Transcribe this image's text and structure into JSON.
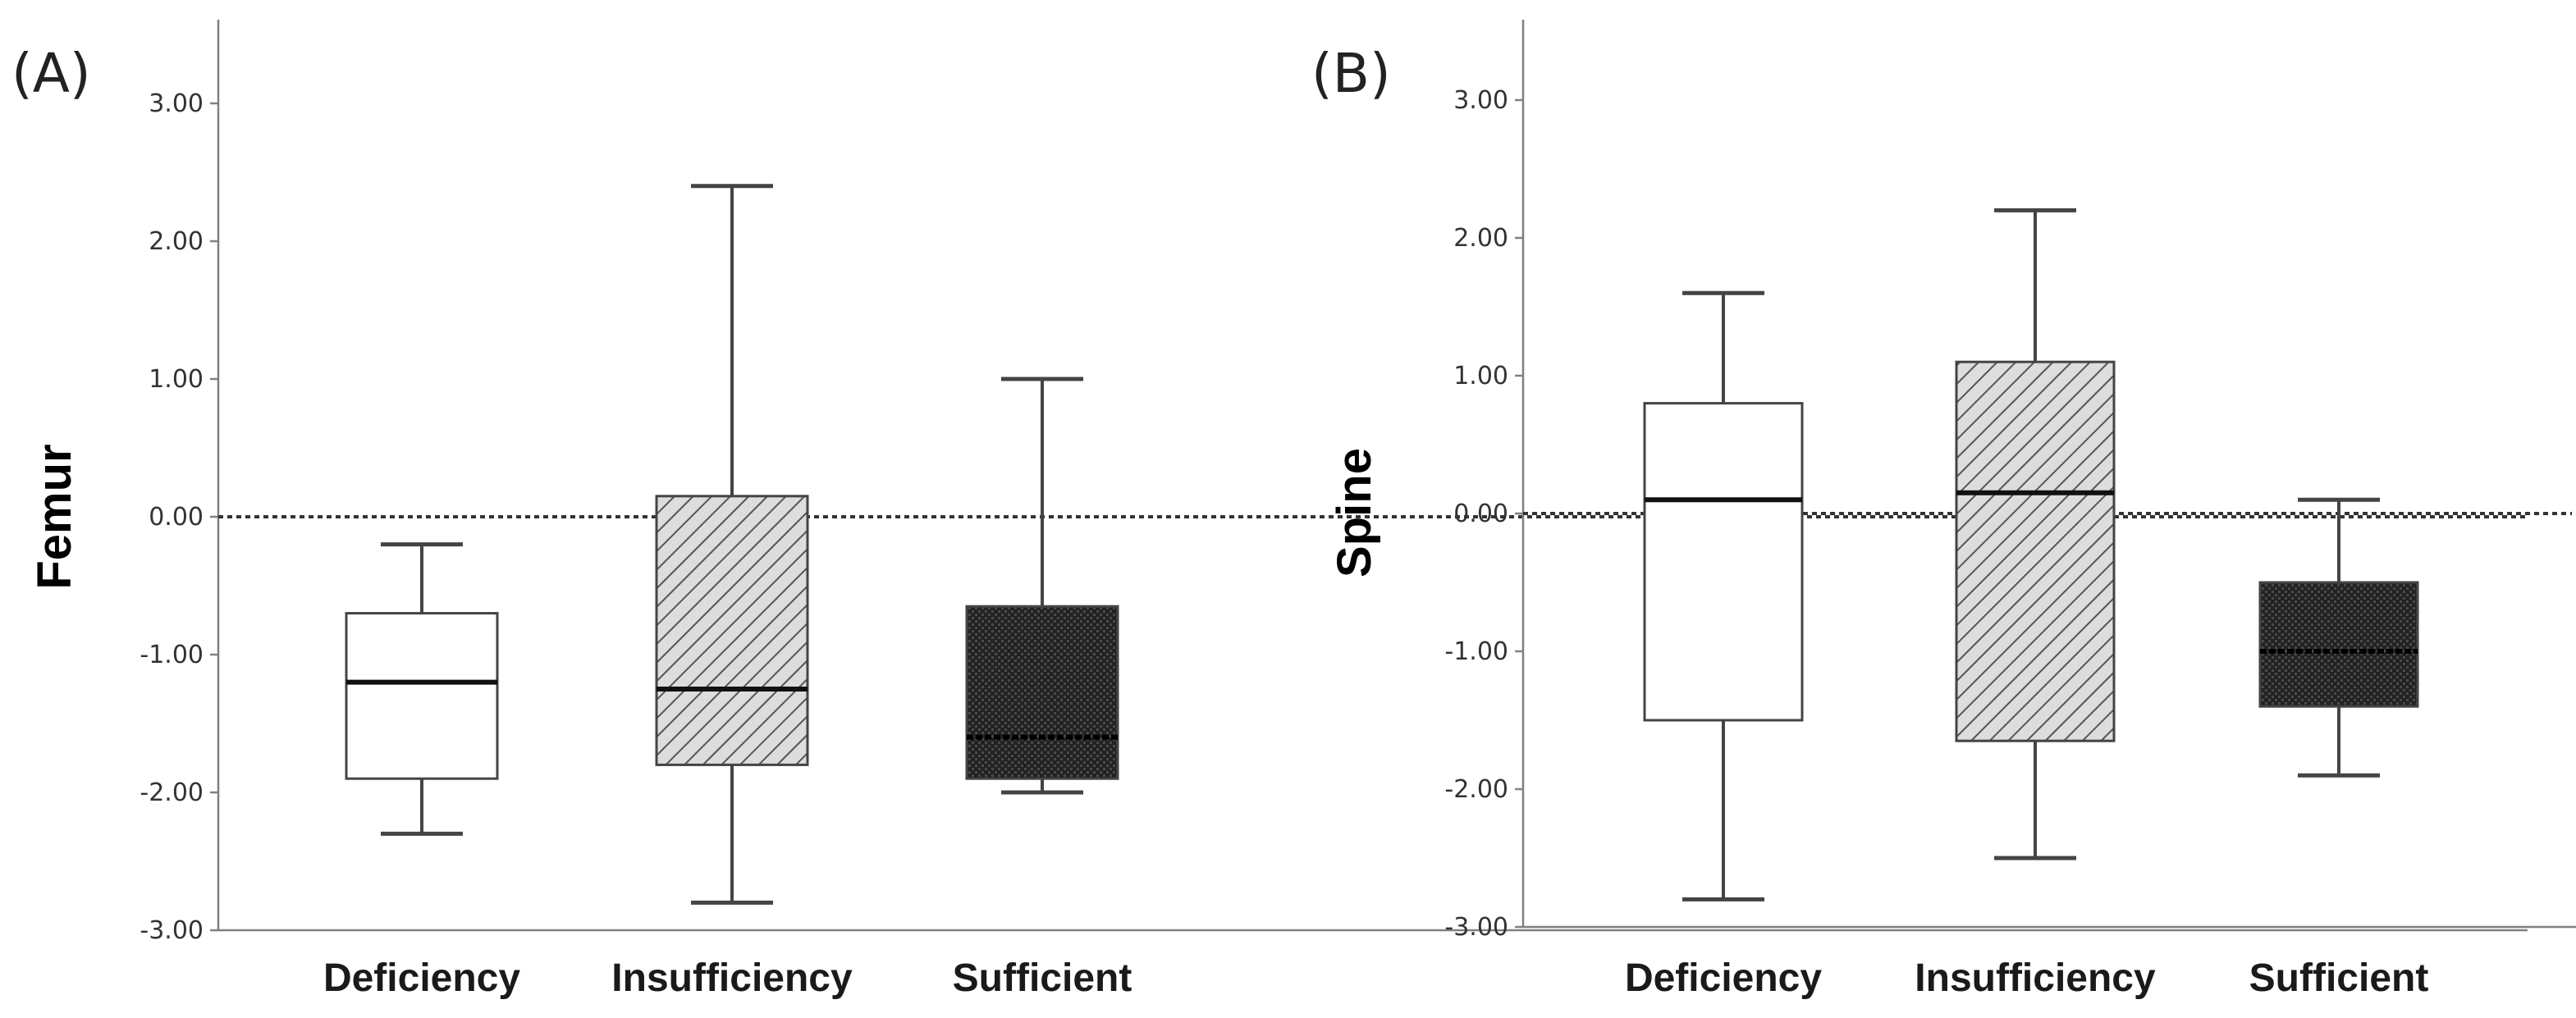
{
  "figure": {
    "panel_labels": [
      "(A)",
      "(B)"
    ]
  },
  "colors": {
    "axis": "#808080",
    "box_stroke": "#444444",
    "fill_white": "#ffffff",
    "hatch_fill": "#dddddd",
    "hatch_line": "#555555",
    "dark_fill": "#222222",
    "dark_fill_pattern": "#555555",
    "reference_line": "#333333"
  },
  "chart_data": [
    {
      "type": "boxplot",
      "panel": "(A)",
      "title": "",
      "xlabel": "",
      "ylabel": "Femur",
      "ylim": [
        -3.0,
        3.6
      ],
      "yticks": [
        3.0,
        2.0,
        1.0,
        0.0,
        -1.0,
        -2.0,
        -3.0
      ],
      "ytick_labels": [
        "3.00",
        "2.00",
        "1.00",
        "0.00",
        "-1.00",
        "-2.00",
        "-3.00"
      ],
      "reference_line": 0.0,
      "categories": [
        "Deficiency",
        "Insufficiency",
        "Sufficient"
      ],
      "boxes": [
        {
          "category": "Deficiency",
          "fill": "white",
          "whisker_low": -2.3,
          "q1": -1.9,
          "median": -1.2,
          "q3": -0.7,
          "whisker_high": -0.2
        },
        {
          "category": "Insufficiency",
          "fill": "hatched",
          "whisker_low": -2.8,
          "q1": -1.8,
          "median": -1.25,
          "q3": 0.15,
          "whisker_high": 2.4
        },
        {
          "category": "Sufficient",
          "fill": "dark",
          "whisker_low": -2.0,
          "q1": -1.9,
          "median": -1.6,
          "q3": -0.65,
          "whisker_high": 1.0
        }
      ]
    },
    {
      "type": "boxplot",
      "panel": "(B)",
      "title": "",
      "xlabel": "",
      "ylabel": "Spine",
      "ylim": [
        -3.0,
        3.6
      ],
      "yticks": [
        3.0,
        2.0,
        1.0,
        0.0,
        -1.0,
        -2.0,
        -3.0
      ],
      "ytick_labels": [
        "3.00",
        "2.00",
        "1.00",
        "0.00",
        "-1.00",
        "-2.00",
        "-3.00"
      ],
      "reference_line": 0.0,
      "categories": [
        "Deficiency",
        "Insufficiency",
        "Sufficient"
      ],
      "boxes": [
        {
          "category": "Deficiency",
          "fill": "white",
          "whisker_low": -2.8,
          "q1": -1.5,
          "median": 0.1,
          "q3": 0.8,
          "whisker_high": 1.6
        },
        {
          "category": "Insufficiency",
          "fill": "hatched",
          "whisker_low": -2.5,
          "q1": -1.65,
          "median": 0.15,
          "q3": 1.1,
          "whisker_high": 2.2
        },
        {
          "category": "Sufficient",
          "fill": "dark",
          "whisker_low": -1.9,
          "q1": -1.4,
          "median": -1.0,
          "q3": -0.5,
          "whisker_high": 0.1
        }
      ]
    }
  ]
}
